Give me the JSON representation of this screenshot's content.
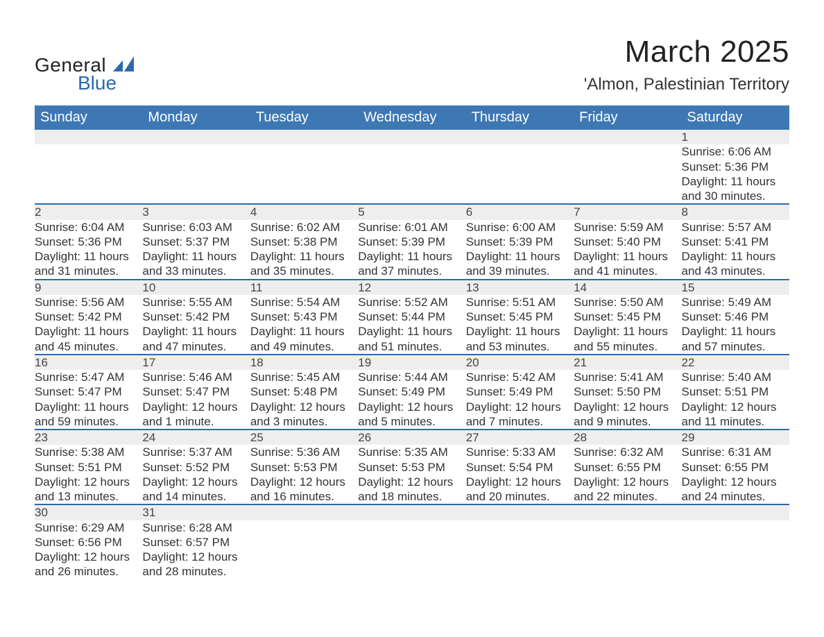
{
  "brand": {
    "line1": "General",
    "line2": "Blue"
  },
  "title": "March 2025",
  "location": "'Almon, Palestinian Territory",
  "colors": {
    "header_blue": "#3d78b4",
    "row_gray": "#eeeeee",
    "accent_blue": "#2b69ad",
    "text": "#333333",
    "background": "#ffffff"
  },
  "weekdays": [
    "Sunday",
    "Monday",
    "Tuesday",
    "Wednesday",
    "Thursday",
    "Friday",
    "Saturday"
  ],
  "weeks": [
    [
      {
        "n": "",
        "sr": "",
        "ss": "",
        "d1": "",
        "d2": ""
      },
      {
        "n": "",
        "sr": "",
        "ss": "",
        "d1": "",
        "d2": ""
      },
      {
        "n": "",
        "sr": "",
        "ss": "",
        "d1": "",
        "d2": ""
      },
      {
        "n": "",
        "sr": "",
        "ss": "",
        "d1": "",
        "d2": ""
      },
      {
        "n": "",
        "sr": "",
        "ss": "",
        "d1": "",
        "d2": ""
      },
      {
        "n": "",
        "sr": "",
        "ss": "",
        "d1": "",
        "d2": ""
      },
      {
        "n": "1",
        "sr": "Sunrise: 6:06 AM",
        "ss": "Sunset: 5:36 PM",
        "d1": "Daylight: 11 hours",
        "d2": "and 30 minutes."
      }
    ],
    [
      {
        "n": "2",
        "sr": "Sunrise: 6:04 AM",
        "ss": "Sunset: 5:36 PM",
        "d1": "Daylight: 11 hours",
        "d2": "and 31 minutes."
      },
      {
        "n": "3",
        "sr": "Sunrise: 6:03 AM",
        "ss": "Sunset: 5:37 PM",
        "d1": "Daylight: 11 hours",
        "d2": "and 33 minutes."
      },
      {
        "n": "4",
        "sr": "Sunrise: 6:02 AM",
        "ss": "Sunset: 5:38 PM",
        "d1": "Daylight: 11 hours",
        "d2": "and 35 minutes."
      },
      {
        "n": "5",
        "sr": "Sunrise: 6:01 AM",
        "ss": "Sunset: 5:39 PM",
        "d1": "Daylight: 11 hours",
        "d2": "and 37 minutes."
      },
      {
        "n": "6",
        "sr": "Sunrise: 6:00 AM",
        "ss": "Sunset: 5:39 PM",
        "d1": "Daylight: 11 hours",
        "d2": "and 39 minutes."
      },
      {
        "n": "7",
        "sr": "Sunrise: 5:59 AM",
        "ss": "Sunset: 5:40 PM",
        "d1": "Daylight: 11 hours",
        "d2": "and 41 minutes."
      },
      {
        "n": "8",
        "sr": "Sunrise: 5:57 AM",
        "ss": "Sunset: 5:41 PM",
        "d1": "Daylight: 11 hours",
        "d2": "and 43 minutes."
      }
    ],
    [
      {
        "n": "9",
        "sr": "Sunrise: 5:56 AM",
        "ss": "Sunset: 5:42 PM",
        "d1": "Daylight: 11 hours",
        "d2": "and 45 minutes."
      },
      {
        "n": "10",
        "sr": "Sunrise: 5:55 AM",
        "ss": "Sunset: 5:42 PM",
        "d1": "Daylight: 11 hours",
        "d2": "and 47 minutes."
      },
      {
        "n": "11",
        "sr": "Sunrise: 5:54 AM",
        "ss": "Sunset: 5:43 PM",
        "d1": "Daylight: 11 hours",
        "d2": "and 49 minutes."
      },
      {
        "n": "12",
        "sr": "Sunrise: 5:52 AM",
        "ss": "Sunset: 5:44 PM",
        "d1": "Daylight: 11 hours",
        "d2": "and 51 minutes."
      },
      {
        "n": "13",
        "sr": "Sunrise: 5:51 AM",
        "ss": "Sunset: 5:45 PM",
        "d1": "Daylight: 11 hours",
        "d2": "and 53 minutes."
      },
      {
        "n": "14",
        "sr": "Sunrise: 5:50 AM",
        "ss": "Sunset: 5:45 PM",
        "d1": "Daylight: 11 hours",
        "d2": "and 55 minutes."
      },
      {
        "n": "15",
        "sr": "Sunrise: 5:49 AM",
        "ss": "Sunset: 5:46 PM",
        "d1": "Daylight: 11 hours",
        "d2": "and 57 minutes."
      }
    ],
    [
      {
        "n": "16",
        "sr": "Sunrise: 5:47 AM",
        "ss": "Sunset: 5:47 PM",
        "d1": "Daylight: 11 hours",
        "d2": "and 59 minutes."
      },
      {
        "n": "17",
        "sr": "Sunrise: 5:46 AM",
        "ss": "Sunset: 5:47 PM",
        "d1": "Daylight: 12 hours",
        "d2": "and 1 minute."
      },
      {
        "n": "18",
        "sr": "Sunrise: 5:45 AM",
        "ss": "Sunset: 5:48 PM",
        "d1": "Daylight: 12 hours",
        "d2": "and 3 minutes."
      },
      {
        "n": "19",
        "sr": "Sunrise: 5:44 AM",
        "ss": "Sunset: 5:49 PM",
        "d1": "Daylight: 12 hours",
        "d2": "and 5 minutes."
      },
      {
        "n": "20",
        "sr": "Sunrise: 5:42 AM",
        "ss": "Sunset: 5:49 PM",
        "d1": "Daylight: 12 hours",
        "d2": "and 7 minutes."
      },
      {
        "n": "21",
        "sr": "Sunrise: 5:41 AM",
        "ss": "Sunset: 5:50 PM",
        "d1": "Daylight: 12 hours",
        "d2": "and 9 minutes."
      },
      {
        "n": "22",
        "sr": "Sunrise: 5:40 AM",
        "ss": "Sunset: 5:51 PM",
        "d1": "Daylight: 12 hours",
        "d2": "and 11 minutes."
      }
    ],
    [
      {
        "n": "23",
        "sr": "Sunrise: 5:38 AM",
        "ss": "Sunset: 5:51 PM",
        "d1": "Daylight: 12 hours",
        "d2": "and 13 minutes."
      },
      {
        "n": "24",
        "sr": "Sunrise: 5:37 AM",
        "ss": "Sunset: 5:52 PM",
        "d1": "Daylight: 12 hours",
        "d2": "and 14 minutes."
      },
      {
        "n": "25",
        "sr": "Sunrise: 5:36 AM",
        "ss": "Sunset: 5:53 PM",
        "d1": "Daylight: 12 hours",
        "d2": "and 16 minutes."
      },
      {
        "n": "26",
        "sr": "Sunrise: 5:35 AM",
        "ss": "Sunset: 5:53 PM",
        "d1": "Daylight: 12 hours",
        "d2": "and 18 minutes."
      },
      {
        "n": "27",
        "sr": "Sunrise: 5:33 AM",
        "ss": "Sunset: 5:54 PM",
        "d1": "Daylight: 12 hours",
        "d2": "and 20 minutes."
      },
      {
        "n": "28",
        "sr": "Sunrise: 6:32 AM",
        "ss": "Sunset: 6:55 PM",
        "d1": "Daylight: 12 hours",
        "d2": "and 22 minutes."
      },
      {
        "n": "29",
        "sr": "Sunrise: 6:31 AM",
        "ss": "Sunset: 6:55 PM",
        "d1": "Daylight: 12 hours",
        "d2": "and 24 minutes."
      }
    ],
    [
      {
        "n": "30",
        "sr": "Sunrise: 6:29 AM",
        "ss": "Sunset: 6:56 PM",
        "d1": "Daylight: 12 hours",
        "d2": "and 26 minutes."
      },
      {
        "n": "31",
        "sr": "Sunrise: 6:28 AM",
        "ss": "Sunset: 6:57 PM",
        "d1": "Daylight: 12 hours",
        "d2": "and 28 minutes."
      },
      {
        "n": "",
        "sr": "",
        "ss": "",
        "d1": "",
        "d2": ""
      },
      {
        "n": "",
        "sr": "",
        "ss": "",
        "d1": "",
        "d2": ""
      },
      {
        "n": "",
        "sr": "",
        "ss": "",
        "d1": "",
        "d2": ""
      },
      {
        "n": "",
        "sr": "",
        "ss": "",
        "d1": "",
        "d2": ""
      },
      {
        "n": "",
        "sr": "",
        "ss": "",
        "d1": "",
        "d2": ""
      }
    ]
  ]
}
